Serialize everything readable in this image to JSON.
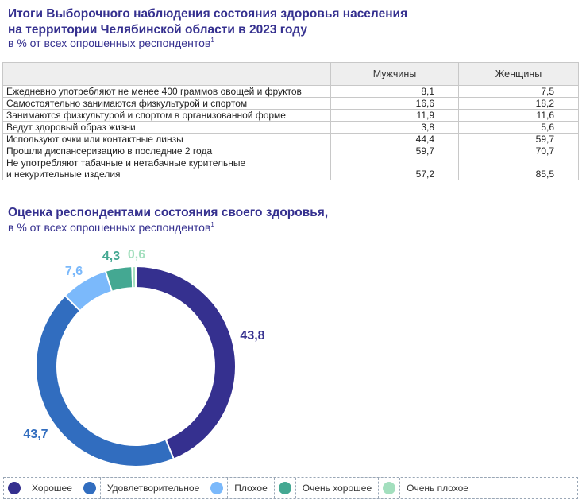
{
  "header": {
    "title_line1": "Итоги Выборочного наблюдения состояния здоровья населения",
    "title_line2": "на территории Челябинской области в 2023 году",
    "subtitle": "в % от всех опрошенных респондентов",
    "footnote_mark": "1"
  },
  "table": {
    "columns": [
      "",
      "Мужчины",
      "Женщины"
    ],
    "rows": [
      {
        "label": "Ежедневно употребляют не менее 400 граммов овощей и фруктов",
        "men": "8,1",
        "women": "7,5"
      },
      {
        "label": "Самостоятельно занимаются физкультурой и спортом",
        "men": "16,6",
        "women": "18,2"
      },
      {
        "label": "Занимаются физкультурой и спортом в организованной форме",
        "men": "11,9",
        "women": "11,6"
      },
      {
        "label": "Ведут здоровый образ жизни",
        "men": "3,8",
        "women": "5,6"
      },
      {
        "label": "Используют очки или контактные линзы",
        "men": "44,4",
        "women": "59,7"
      },
      {
        "label": "Прошли диспансеризацию в последние 2 года",
        "men": "59,7",
        "women": "70,7"
      },
      {
        "label": "Не употребляют табачные и нетабачные курительные",
        "label2": "и некурительные изделия",
        "men": "57,2",
        "women": "85,5"
      }
    ]
  },
  "chart_data": {
    "type": "pie",
    "donut": true,
    "title": "Оценка респондентами состояния своего здоровья,",
    "subtitle": "в % от всех опрошенных респондентов",
    "footnote_mark": "1",
    "legend_position": "bottom",
    "categories": [
      "Хорошее",
      "Удовлетворительное",
      "Плохое",
      "Очень хорошее",
      "Очень плохое"
    ],
    "values": [
      43.8,
      43.7,
      7.6,
      4.3,
      0.6
    ],
    "labels": [
      "43,8",
      "43,7",
      "7,6",
      "4,3",
      "0,6"
    ],
    "colors": [
      "#35308f",
      "#316dbf",
      "#7bb9fb",
      "#44a892",
      "#a3dfbe"
    ]
  }
}
